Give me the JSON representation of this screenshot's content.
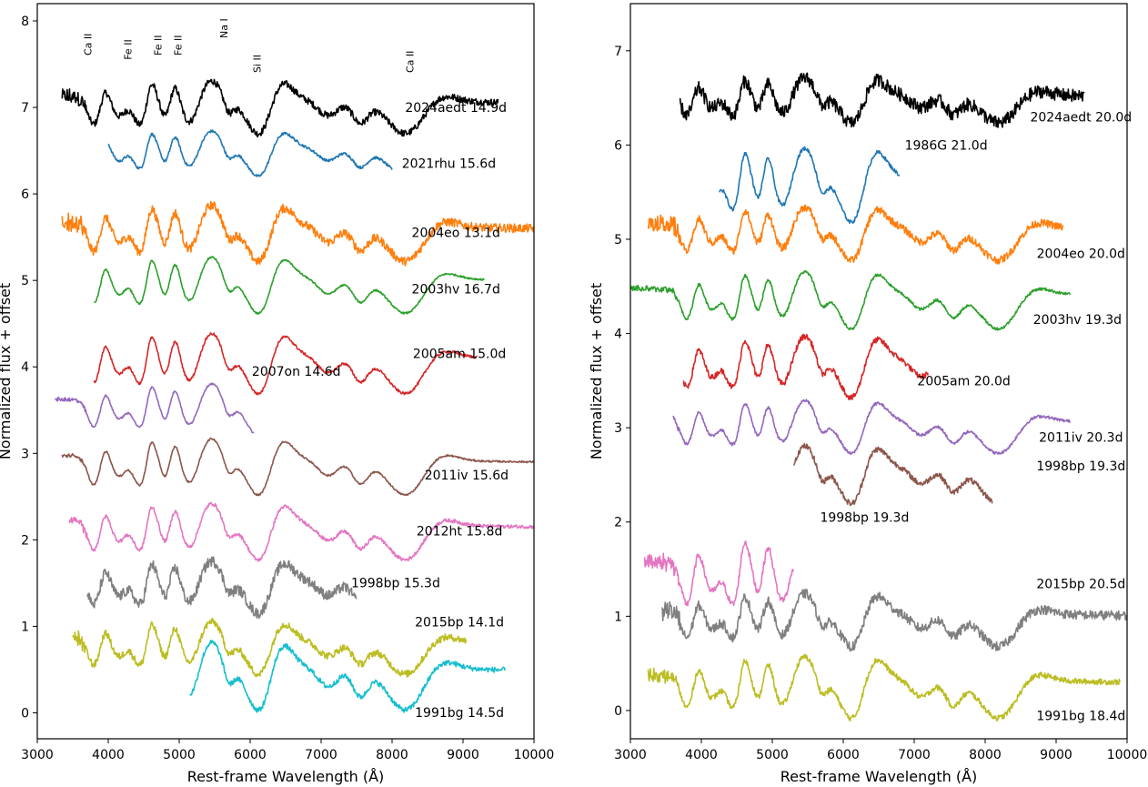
{
  "chart_data": [
    {
      "type": "line",
      "panel": "left",
      "xlabel": "Rest-frame Wavelength (Å)",
      "ylabel": "Normalized flux + offset",
      "xlim": [
        3000,
        10000
      ],
      "ylim": [
        -0.3,
        8.2
      ],
      "xticks": [
        3000,
        4000,
        5000,
        6000,
        7000,
        8000,
        9000,
        10000
      ],
      "yticks": [
        0,
        1,
        2,
        3,
        4,
        5,
        6,
        7,
        8
      ],
      "line_ids": [
        {
          "text": "Ca II",
          "x": 3760,
          "y": 7.6
        },
        {
          "text": "Fe II",
          "x": 4330,
          "y": 7.55
        },
        {
          "text": "Fe II",
          "x": 4750,
          "y": 7.6
        },
        {
          "text": "Fe II",
          "x": 5030,
          "y": 7.6
        },
        {
          "text": "Na I",
          "x": 5680,
          "y": 7.8
        },
        {
          "text": "Si II",
          "x": 6150,
          "y": 7.4
        },
        {
          "text": "Ca II",
          "x": 8300,
          "y": 7.4
        }
      ],
      "series": [
        {
          "name": "2024aedt",
          "epoch": "14.9d",
          "label": "2024aedt 14.9d",
          "color": "#000000",
          "offset": 7.1,
          "scale": 0.7,
          "range": [
            3350,
            9500
          ],
          "noise": 0.04,
          "label_x": 8900,
          "label_y": 6.95
        },
        {
          "name": "2021rhu",
          "epoch": "15.6d",
          "label": "2021rhu 15.6d",
          "color": "#1f77b4",
          "offset": 6.55,
          "scale": 0.6,
          "range": [
            4000,
            8000
          ],
          "noise": 0.015,
          "label_x": 8800,
          "label_y": 6.3
        },
        {
          "name": "2004eo",
          "epoch": "13.1d",
          "label": "2004eo 13.1d",
          "color": "#ff7f0e",
          "offset": 5.65,
          "scale": 0.75,
          "range": [
            3350,
            10000
          ],
          "noise": 0.05,
          "label_x": 8900,
          "label_y": 5.5
        },
        {
          "name": "2003hv",
          "epoch": "16.7d",
          "label": "2003hv 16.7d",
          "color": "#2ca02c",
          "offset": 5.05,
          "scale": 0.75,
          "range": [
            3800,
            9300
          ],
          "noise": 0.01,
          "label_x": 8900,
          "label_y": 4.85
        },
        {
          "name": "2005am",
          "epoch": "15.0d",
          "label": "2005am 15.0d",
          "color": "#d62728",
          "offset": 4.15,
          "scale": 0.8,
          "range": [
            3800,
            9200
          ],
          "noise": 0.015,
          "label_x": 8950,
          "label_y": 4.1
        },
        {
          "name": "2007on",
          "epoch": "14.6d",
          "label": "2007on 14.6d",
          "color": "#9467bd",
          "offset": 3.6,
          "scale": 0.7,
          "range": [
            3250,
            6050
          ],
          "noise": 0.01,
          "label_x": 6650,
          "label_y": 3.9
        },
        {
          "name": "2011iv",
          "epoch": "15.6d",
          "label": "2011iv 15.6d",
          "color": "#8c564b",
          "offset": 2.95,
          "scale": 0.75,
          "range": [
            3350,
            10000
          ],
          "noise": 0.01,
          "label_x": 9050,
          "label_y": 2.7
        },
        {
          "name": "2012ht",
          "epoch": "15.8d",
          "label": "2012ht 15.8d",
          "color": "#e377c2",
          "offset": 2.2,
          "scale": 0.75,
          "range": [
            3450,
            10000
          ],
          "noise": 0.02,
          "label_x": 8950,
          "label_y": 2.05
        },
        {
          "name": "1998bp",
          "epoch": "15.3d",
          "label": "1998bp 15.3d",
          "color": "#7f7f7f",
          "offset": 1.55,
          "scale": 0.7,
          "range": [
            3700,
            7500
          ],
          "noise": 0.06,
          "label_x": 8050,
          "label_y": 1.45
        },
        {
          "name": "2015bp",
          "epoch": "14.1d",
          "label": "2015bp 14.1d",
          "color": "#bcbd22",
          "offset": 0.85,
          "scale": 0.7,
          "range": [
            3500,
            9050
          ],
          "noise": 0.04,
          "label_x": 8950,
          "label_y": 1.0
        },
        {
          "name": "1991bg",
          "epoch": "14.5d",
          "label": "1991bg 14.5d",
          "color": "#17becf",
          "offset": 0.55,
          "scale": 0.9,
          "range": [
            5150,
            9600
          ],
          "noise": 0.03,
          "label_x": 8950,
          "label_y": -0.05
        }
      ]
    },
    {
      "type": "line",
      "panel": "right",
      "xlabel": "Rest-frame Wavelength (Å)",
      "ylabel": "Normalized flux + offset",
      "xlim": [
        3000,
        10000
      ],
      "ylim": [
        -0.3,
        7.5
      ],
      "xticks": [
        3000,
        4000,
        5000,
        6000,
        7000,
        8000,
        9000,
        10000
      ],
      "yticks": [
        0,
        1,
        2,
        3,
        4,
        5,
        6,
        7
      ],
      "series": [
        {
          "name": "2024aedt",
          "epoch": "20.0d",
          "label": "2024aedt 20.0d",
          "color": "#000000",
          "offset": 6.55,
          "scale": 0.55,
          "range": [
            3700,
            9400
          ],
          "noise": 0.07,
          "label_x": 9350,
          "label_y": 6.25
        },
        {
          "name": "1986G",
          "epoch": "21.0d",
          "label": "1986G 21.0d",
          "color": "#1f77b4",
          "offset": 5.7,
          "scale": 0.9,
          "range": [
            4250,
            6800
          ],
          "noise": 0.02,
          "label_x": 7450,
          "label_y": 5.95
        },
        {
          "name": "2004eo",
          "epoch": "20.0d",
          "label": "2004eo 20.0d",
          "color": "#ff7f0e",
          "offset": 5.15,
          "scale": 0.65,
          "range": [
            3250,
            9100
          ],
          "noise": 0.04,
          "label_x": 9350,
          "label_y": 4.8
        },
        {
          "name": "2003hv",
          "epoch": "19.3d",
          "label": "2003hv 19.3d",
          "color": "#2ca02c",
          "offset": 4.45,
          "scale": 0.7,
          "range": [
            3000,
            9200
          ],
          "noise": 0.015,
          "label_x": 9300,
          "label_y": 4.1
        },
        {
          "name": "2005am",
          "epoch": "20.0d",
          "label": "2005am 20.0d",
          "color": "#d62728",
          "offset": 3.75,
          "scale": 0.75,
          "range": [
            3750,
            7200
          ],
          "noise": 0.03,
          "label_x": 7700,
          "label_y": 3.45
        },
        {
          "name": "2011iv",
          "epoch": "20.3d",
          "label": "2011iv 20.3d",
          "color": "#9467bd",
          "offset": 3.1,
          "scale": 0.65,
          "range": [
            3600,
            9200
          ],
          "noise": 0.015,
          "label_x": 9350,
          "label_y": 2.85
        },
        {
          "name": "1998bp",
          "epoch": "19.3d",
          "label": "1998bp 19.3d",
          "color": "#8c564b",
          "offset": 2.6,
          "scale": 0.7,
          "range": [
            5300,
            8100
          ],
          "noise": 0.03,
          "label_x": 9350,
          "label_y": 2.55
        },
        {
          "name": "1998bp",
          "epoch": "19.3d",
          "label": "1998bp 19.3d",
          "color": "#e377c2",
          "offset": 1.55,
          "scale": 1.0,
          "range": [
            3200,
            5300
          ],
          "noise": 0.035,
          "label_x": 6300,
          "label_y": 2.0
        },
        {
          "name": "2015bp",
          "epoch": "20.5d",
          "label": "2015bp 20.5d",
          "color": "#7f7f7f",
          "offset": 1.05,
          "scale": 0.65,
          "range": [
            3450,
            10000
          ],
          "noise": 0.05,
          "label_x": 9350,
          "label_y": 1.3
        },
        {
          "name": "1991bg",
          "epoch": "18.4d",
          "label": "1991bg 18.4d",
          "color": "#bcbd22",
          "offset": 0.35,
          "scale": 0.75,
          "range": [
            3250,
            9900
          ],
          "noise": 0.03,
          "label_x": 9350,
          "label_y": -0.1
        }
      ]
    }
  ]
}
